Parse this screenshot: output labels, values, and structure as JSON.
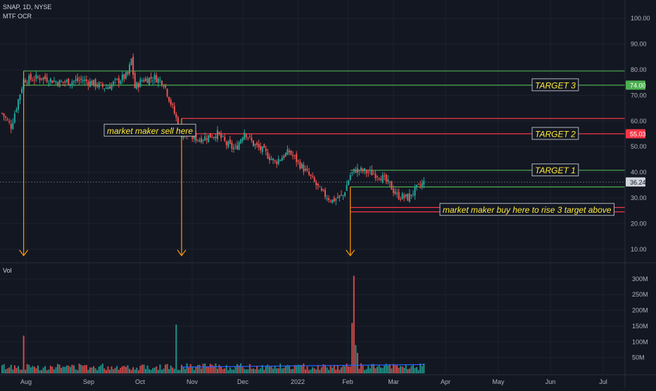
{
  "header": {
    "symbol_line": "SNAP, 1D, NYSE",
    "indicator": "MTF OCR",
    "volume_label": "Vol"
  },
  "colors": {
    "background": "#131722",
    "up": "#26a69a",
    "down": "#ef5350",
    "green_line": "#4caf50",
    "red_line": "#f23645",
    "arrow": "#ff9800",
    "annotation_text": "#ffeb3b",
    "volume_ma": "#2962ff"
  },
  "chart_data": [
    {
      "type": "candlestick",
      "ylim": [
        5,
        105
      ],
      "y_ticks": [
        "100.00",
        "90.00",
        "80.00",
        "70.00",
        "60.00",
        "50.00",
        "40.00",
        "30.00",
        "20.00",
        "10.00"
      ],
      "y_tick_values": [
        100,
        90,
        80,
        70,
        60,
        50,
        40,
        30,
        20,
        10
      ],
      "x_labels": [
        "Aug",
        "Sep",
        "Oct",
        "Nov",
        "Dec",
        "2022",
        "Feb",
        "Mar",
        "Apr",
        "May",
        "Jun",
        "Jul"
      ],
      "price_badges": [
        {
          "text": "74.00",
          "value": 74.0,
          "kind": "green"
        },
        {
          "text": "55.03",
          "value": 55.03,
          "kind": "red"
        },
        {
          "text": "36.24",
          "value": 36.24,
          "kind": "last"
        }
      ],
      "close_path": [
        [
          0,
          63
        ],
        [
          5,
          58
        ],
        [
          12,
          76
        ],
        [
          22,
          77
        ],
        [
          32,
          75
        ],
        [
          45,
          76
        ],
        [
          58,
          73
        ],
        [
          70,
          78
        ],
        [
          72,
          84
        ],
        [
          74,
          73
        ],
        [
          78,
          76
        ],
        [
          85,
          77
        ],
        [
          90,
          75
        ],
        [
          100,
          55
        ],
        [
          110,
          53
        ],
        [
          120,
          55
        ],
        [
          125,
          51
        ],
        [
          130,
          49
        ],
        [
          135,
          56
        ],
        [
          140,
          51
        ],
        [
          146,
          48
        ],
        [
          152,
          44
        ],
        [
          160,
          48
        ],
        [
          166,
          43
        ],
        [
          172,
          38
        ],
        [
          178,
          32
        ],
        [
          184,
          29
        ],
        [
          190,
          31
        ],
        [
          194,
          39
        ],
        [
          197,
          41
        ],
        [
          204,
          40
        ],
        [
          210,
          39
        ],
        [
          216,
          35
        ],
        [
          220,
          31
        ],
        [
          226,
          30
        ],
        [
          230,
          33
        ],
        [
          235,
          36
        ]
      ],
      "horizontal_levels": [
        {
          "value": 79.5,
          "kind": "green",
          "start": 12
        },
        {
          "value": 74.0,
          "kind": "green",
          "start": 12
        },
        {
          "value": 61.0,
          "kind": "red",
          "start": 100
        },
        {
          "value": 55.03,
          "kind": "red",
          "start": 100
        },
        {
          "value": 40.8,
          "kind": "green",
          "start": 194
        },
        {
          "value": 34.3,
          "kind": "green",
          "start": 194
        },
        {
          "value": 26.3,
          "kind": "red",
          "start": 194
        },
        {
          "value": 24.6,
          "kind": "red",
          "start": 194
        }
      ],
      "annotations": [
        {
          "text": "market maker sell here",
          "value": 56.3,
          "kind": "neutral"
        },
        {
          "text": "TARGET 3",
          "value": 74.0,
          "kind": "green"
        },
        {
          "text": "TARGET 2",
          "value": 55.03,
          "kind": "red"
        },
        {
          "text": "TARGET 1",
          "value": 40.8,
          "kind": "green"
        },
        {
          "text": "market maker buy here to rise 3 target above",
          "value": 25.4,
          "kind": "neutral"
        }
      ],
      "arrows": [
        {
          "bar": 12,
          "from": 79.5,
          "to": 7.5
        },
        {
          "bar": 100,
          "from": 61.0,
          "to": 7.5
        },
        {
          "bar": 194,
          "from": 34.3,
          "to": 7.5
        }
      ],
      "last_price": 36.24
    },
    {
      "type": "bar",
      "title": "Vol",
      "ylim": [
        0,
        340
      ],
      "y_ticks": [
        "300M",
        "250M",
        "200M",
        "150M",
        "100M",
        "50M"
      ],
      "y_tick_values": [
        300,
        250,
        200,
        150,
        100,
        50
      ],
      "spikes": [
        [
          12,
          120
        ],
        [
          97,
          155
        ],
        [
          195,
          160
        ],
        [
          196,
          310
        ],
        [
          197,
          90
        ],
        [
          198,
          65
        ]
      ],
      "baseline_volume": 20
    }
  ]
}
